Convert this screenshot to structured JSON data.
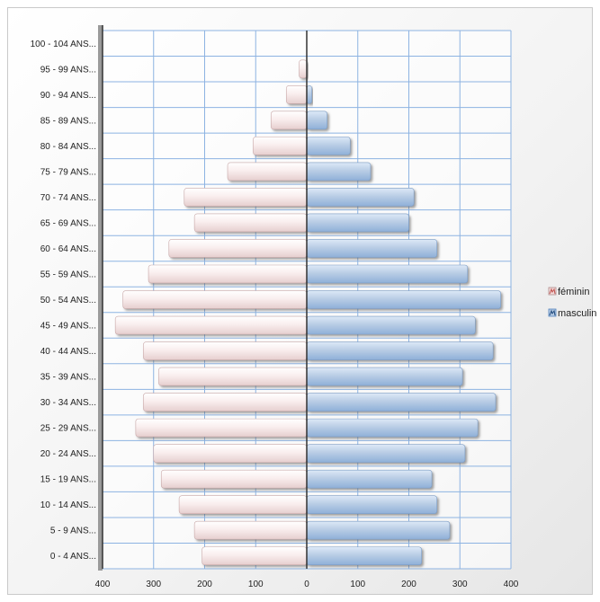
{
  "chart_data": {
    "type": "bar",
    "orientation": "horizontal",
    "categories": [
      "0 - 4 ANS...",
      "5 - 9 ANS...",
      "10 - 14 ANS...",
      "15 - 19 ANS...",
      "20 - 24 ANS...",
      "25 - 29 ANS...",
      "30 - 34 ANS...",
      "35 - 39 ANS...",
      "40 - 44 ANS...",
      "45 - 49 ANS...",
      "50 - 54 ANS...",
      "55 - 59 ANS...",
      "60 - 64 ANS...",
      "65 - 69 ANS...",
      "70 - 74 ANS...",
      "75 - 79 ANS...",
      "80 - 84 ANS...",
      "85 - 89 ANS...",
      "90 - 94 ANS...",
      "95 - 99 ANS...",
      "100 - 104 ANS..."
    ],
    "series": [
      {
        "name": "féminin",
        "values": [
          -205,
          -220,
          -250,
          -285,
          -300,
          -335,
          -320,
          -290,
          -320,
          -375,
          -360,
          -310,
          -270,
          -220,
          -240,
          -155,
          -105,
          -70,
          -40,
          -15,
          0
        ],
        "color": "#f2dcdb"
      },
      {
        "name": "masculin",
        "values": [
          225,
          280,
          255,
          245,
          310,
          335,
          370,
          305,
          365,
          330,
          380,
          315,
          255,
          200,
          210,
          125,
          85,
          40,
          10,
          0,
          0
        ],
        "color": "#b9cde5"
      }
    ],
    "xlim": [
      -400,
      400
    ],
    "xticks": [
      -400,
      -300,
      -200,
      -100,
      0,
      100,
      200,
      300,
      400
    ],
    "xtick_labels": [
      "400",
      "300",
      "200",
      "100",
      "0",
      "100",
      "200",
      "300",
      "400"
    ],
    "grid": true,
    "legend_position": "right"
  }
}
